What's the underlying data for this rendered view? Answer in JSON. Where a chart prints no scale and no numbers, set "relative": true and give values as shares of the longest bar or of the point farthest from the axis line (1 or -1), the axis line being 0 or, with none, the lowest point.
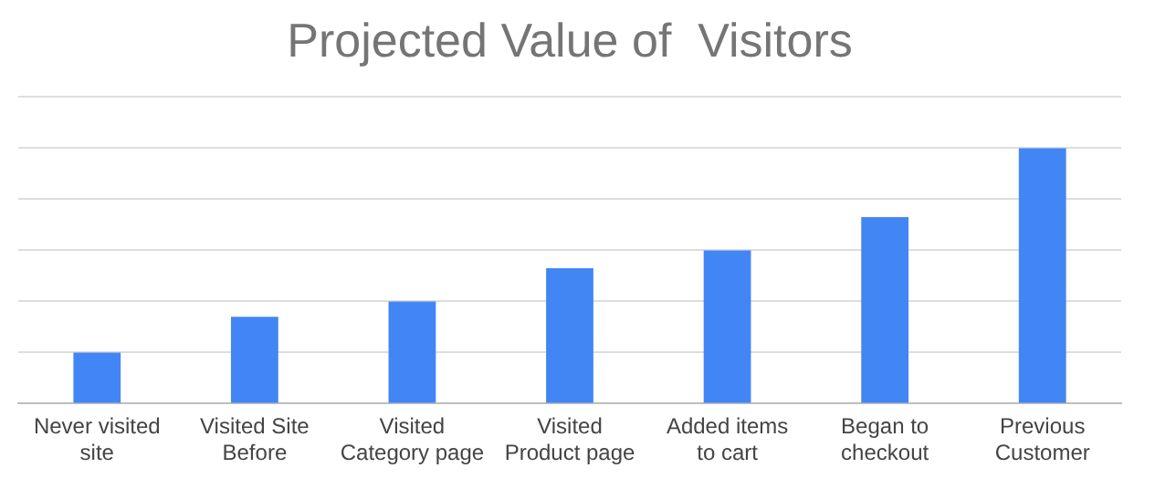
{
  "chart_data": {
    "type": "bar",
    "title": "Projected Value of  Visitors",
    "categories": [
      "Never visited site",
      "Visited Site Before",
      "Visited Category page",
      "Visited Product page",
      "Added items to cart",
      "Began to checkout",
      "Previous Customer"
    ],
    "values": [
      0.2,
      0.34,
      0.4,
      0.53,
      0.6,
      0.73,
      1
    ],
    "color": "#4285f4",
    "relative": true,
    "grid": "y"
  }
}
